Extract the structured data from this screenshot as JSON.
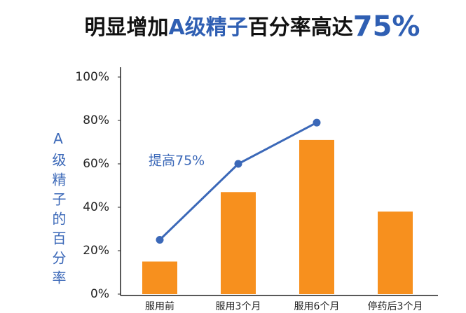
{
  "chart_data": {
    "type": "bar",
    "title": [
      "明显增加",
      "A级精子",
      "百分率高达",
      "75%"
    ],
    "y_label": "A级精子的百分率",
    "annotation": "提高75%",
    "categories": [
      "服用前",
      "服用3个月",
      "服用6个月",
      "停药后3个月"
    ],
    "series": [
      {
        "type": "bar",
        "color": "#f7901e",
        "values": [
          15,
          47,
          71,
          38
        ]
      },
      {
        "type": "line",
        "color": "#3b68b8",
        "values": [
          25,
          60,
          79,
          null
        ]
      }
    ],
    "ylim": [
      0,
      100
    ],
    "yticks": [
      {
        "value": 0,
        "label": "0%"
      },
      {
        "value": 20,
        "label": "20%"
      },
      {
        "value": 40,
        "label": "40%"
      },
      {
        "value": 60,
        "label": "60%"
      },
      {
        "value": 80,
        "label": "80%"
      },
      {
        "value": 100,
        "label": "100%"
      }
    ],
    "grid": false
  }
}
